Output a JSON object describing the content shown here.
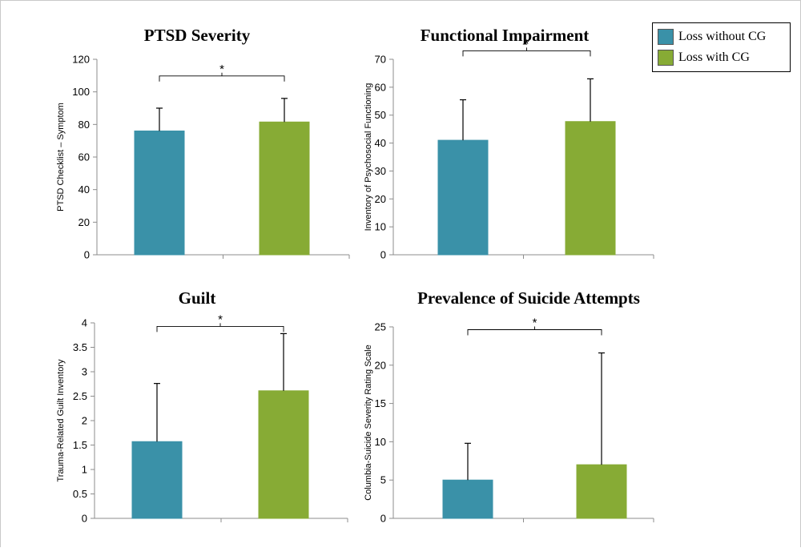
{
  "colors": {
    "loss_without_cg": "#3A91A8",
    "loss_with_cg": "#87AB35"
  },
  "legend": {
    "position": "top-right",
    "items": [
      {
        "label": "Loss without CG",
        "color": "#3A91A8"
      },
      {
        "label": "Loss with CG",
        "color": "#87AB35"
      }
    ]
  },
  "chart_data": [
    {
      "type": "bar",
      "title": "PTSD Severity",
      "ylabel": "PTSD Checklist – Symptom",
      "ylim": [
        0,
        120
      ],
      "yticks": [
        0,
        20,
        40,
        60,
        80,
        100,
        120
      ],
      "ytick_labels": [
        "0",
        "20",
        "40",
        "60",
        "80",
        "100",
        "120"
      ],
      "series": [
        {
          "name": "Loss without CG",
          "values": [
            76
          ],
          "error": [
            14
          ]
        },
        {
          "name": "Loss with CG",
          "values": [
            81.5
          ],
          "error": [
            14.5
          ]
        }
      ],
      "annotation": "*"
    },
    {
      "type": "bar",
      "title": "Functional Impairment",
      "ylabel": "Inventory of Psychosocial Functioning",
      "ylim": [
        0,
        70
      ],
      "yticks": [
        0,
        10,
        20,
        30,
        40,
        50,
        60,
        70
      ],
      "ytick_labels": [
        "0",
        "10",
        "20",
        "30",
        "40",
        "50",
        "60",
        "70"
      ],
      "series": [
        {
          "name": "Loss without CG",
          "values": [
            41
          ],
          "error": [
            14.5
          ]
        },
        {
          "name": "Loss with CG",
          "values": [
            47.7
          ],
          "error": [
            15.3
          ]
        }
      ],
      "annotation": "*"
    },
    {
      "type": "bar",
      "title": "Guilt",
      "ylabel": "Trauma-Related Guilt Inventory",
      "ylim": [
        0,
        4
      ],
      "yticks": [
        0,
        0.5,
        1,
        1.5,
        2,
        2.5,
        3,
        3.5,
        4
      ],
      "ytick_labels": [
        "0",
        "0.5",
        "1",
        "1.5",
        "2",
        "2.5",
        "3",
        "3.5",
        "4"
      ],
      "series": [
        {
          "name": "Loss without CG",
          "values": [
            1.57
          ],
          "error": [
            1.19
          ]
        },
        {
          "name": "Loss with CG",
          "values": [
            2.61
          ],
          "error": [
            1.17
          ]
        }
      ],
      "annotation": "*"
    },
    {
      "type": "bar",
      "title": "Prevalence of Suicide Attempts",
      "ylabel": "Columbia-Suicide Severity Rating Scale",
      "ylim": [
        0,
        25
      ],
      "yticks": [
        0,
        5,
        10,
        15,
        20,
        25
      ],
      "ytick_labels": [
        "0",
        "5",
        "10",
        "15",
        "20",
        "25"
      ],
      "series": [
        {
          "name": "Loss without CG",
          "values": [
            5
          ],
          "error": [
            4.8
          ]
        },
        {
          "name": "Loss with CG",
          "values": [
            7
          ],
          "error": [
            14.6
          ]
        }
      ],
      "annotation": "*"
    }
  ]
}
